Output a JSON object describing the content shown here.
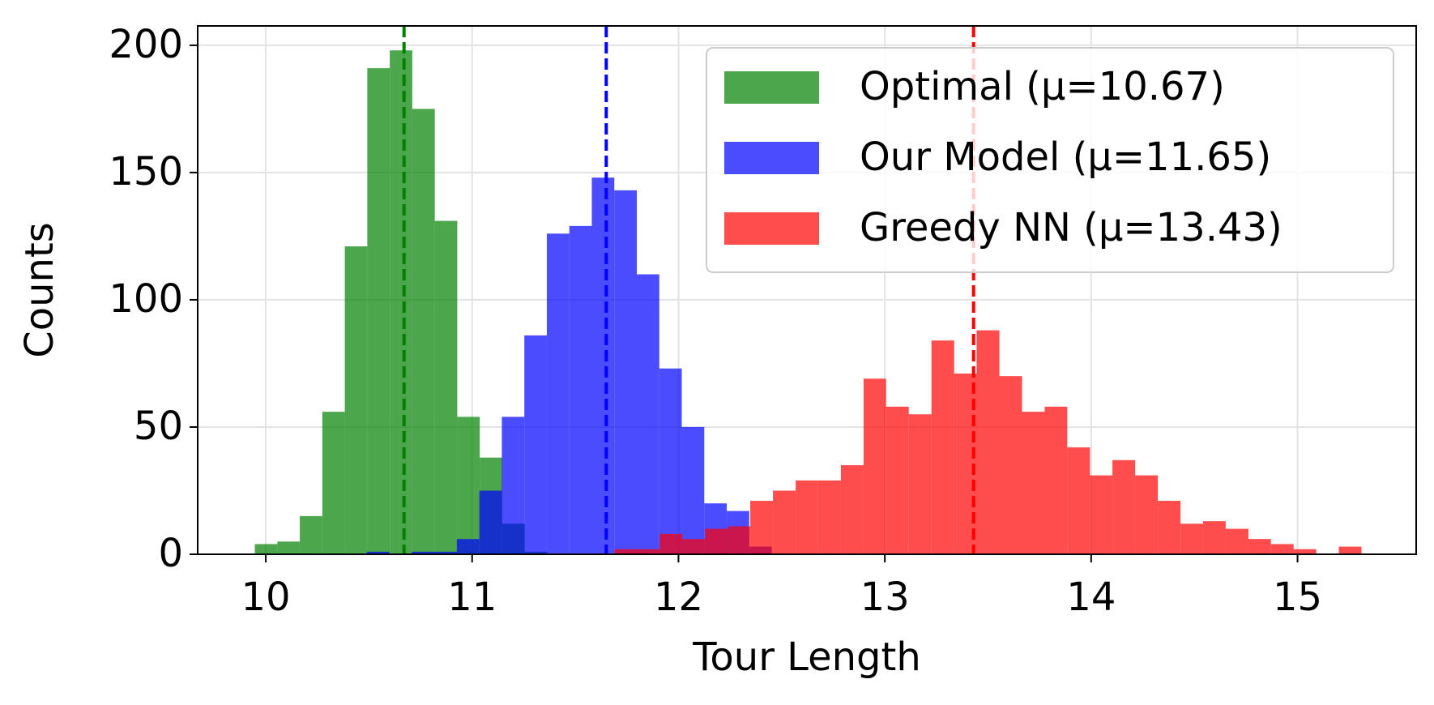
{
  "chart_data": {
    "type": "histogram",
    "xlabel": "Tour Length",
    "ylabel": "Counts",
    "xlim": [
      9.67,
      15.575
    ],
    "ylim": [
      0,
      207.6
    ],
    "xticks": [
      10,
      11,
      12,
      13,
      14,
      15
    ],
    "yticks": [
      0,
      50,
      100,
      150,
      200
    ],
    "grid": true,
    "legend": "upper right",
    "series": [
      {
        "name": "Optimal (μ=10.67)",
        "color": "#008000",
        "mean": 10.67,
        "bins": [
          9.947,
          10.056,
          10.165,
          10.274,
          10.383,
          10.492,
          10.601,
          10.71,
          10.819,
          10.928,
          11.037,
          11.146,
          11.255,
          11.364
        ],
        "values": [
          4,
          5,
          15,
          56,
          121,
          191,
          198,
          175,
          131,
          54,
          38,
          12,
          1
        ]
      },
      {
        "name": "Our Model (μ=11.65)",
        "color": "#0000ff",
        "mean": 11.65,
        "bins": [
          10.49,
          10.599,
          10.708,
          10.817,
          10.926,
          11.035,
          11.144,
          11.253,
          11.362,
          11.471,
          11.58,
          11.689,
          11.798,
          11.907,
          12.016,
          12.125,
          12.234,
          12.343,
          12.452
        ],
        "values": [
          1,
          0,
          1,
          1,
          6,
          25,
          54,
          86,
          126,
          129,
          148,
          143,
          110,
          73,
          50,
          20,
          17,
          3
        ]
      },
      {
        "name": "Greedy NN (μ=13.43)",
        "color": "#ff0000",
        "mean": 13.43,
        "bins": [
          11.69,
          11.8,
          11.909,
          12.019,
          12.129,
          12.239,
          12.348,
          12.458,
          12.568,
          12.677,
          12.787,
          12.897,
          13.006,
          13.116,
          13.226,
          13.336,
          13.445,
          13.555,
          13.665,
          13.775,
          13.884,
          13.994,
          14.103,
          14.213,
          14.323,
          14.433,
          14.542,
          14.652,
          14.762,
          14.871,
          14.981,
          15.091,
          15.2,
          15.31
        ],
        "values": [
          2,
          2,
          8,
          6,
          10,
          11,
          21,
          25,
          29,
          29,
          35,
          69,
          58,
          55,
          84,
          71,
          88,
          70,
          56,
          58,
          42,
          31,
          37,
          31,
          21,
          12,
          13,
          10,
          6,
          4,
          2,
          0,
          3
        ]
      }
    ]
  }
}
